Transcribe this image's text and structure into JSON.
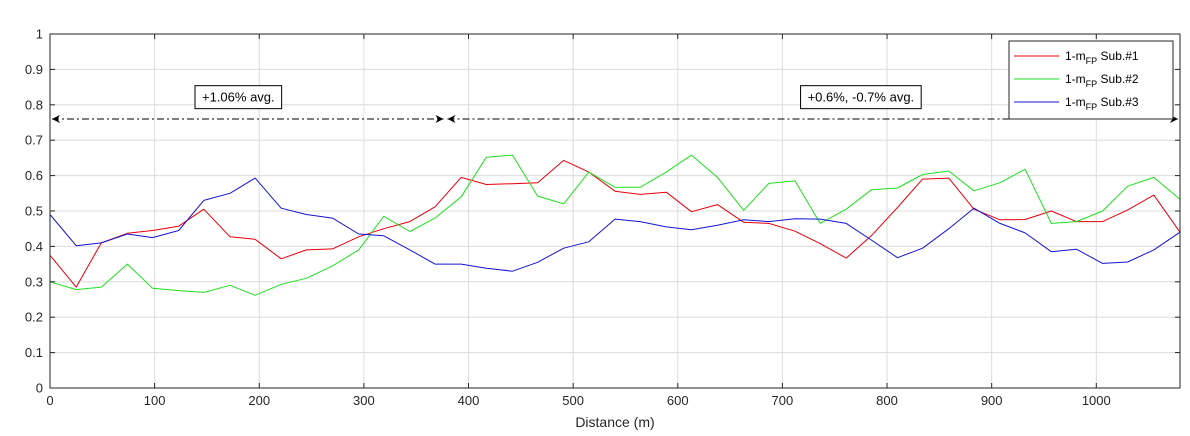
{
  "chart_data": {
    "type": "line",
    "xlabel": "Distance (m)",
    "ylabel": "",
    "xlim": [
      0,
      1080
    ],
    "ylim": [
      0,
      1
    ],
    "grid": true,
    "legend_position": "top-right",
    "xticks": [
      0,
      100,
      200,
      300,
      400,
      500,
      600,
      700,
      800,
      900,
      1000
    ],
    "yticks": [
      0,
      0.1,
      0.2,
      0.3,
      0.4,
      0.5,
      0.6,
      0.7,
      0.8,
      0.9,
      1
    ],
    "xtick_labels": [
      "0",
      "100",
      "200",
      "300",
      "400",
      "500",
      "600",
      "700",
      "800",
      "900",
      "1000"
    ],
    "ytick_labels": [
      "0",
      "0.1",
      "0.2",
      "0.3",
      "0.4",
      "0.5",
      "0.6",
      "0.7",
      "0.8",
      "0.9",
      "1"
    ],
    "x": [
      0,
      25,
      49,
      74,
      98,
      123,
      147,
      172,
      196,
      221,
      245,
      270,
      295,
      319,
      344,
      368,
      393,
      417,
      442,
      466,
      491,
      515,
      540,
      564,
      589,
      613,
      638,
      663,
      687,
      712,
      736,
      761,
      785,
      810,
      834,
      859,
      883,
      908,
      932,
      957,
      981,
      1006,
      1030,
      1055,
      1080
    ],
    "series": [
      {
        "name": "1-mFP Sub.#1",
        "legend_base": "1-m",
        "legend_sub": "FP",
        "legend_suffix": " Sub.#1",
        "color": "#e8000b",
        "values": [
          0.375,
          0.285,
          0.41,
          0.437,
          0.445,
          0.457,
          0.505,
          0.427,
          0.42,
          0.365,
          0.39,
          0.393,
          0.427,
          0.45,
          0.47,
          0.512,
          0.595,
          0.575,
          0.577,
          0.58,
          0.643,
          0.61,
          0.556,
          0.547,
          0.553,
          0.498,
          0.518,
          0.468,
          0.465,
          0.443,
          0.408,
          0.367,
          0.43,
          0.51,
          0.59,
          0.593,
          0.505,
          0.475,
          0.476,
          0.5,
          0.47,
          0.47,
          0.503,
          0.545,
          0.44
        ]
      },
      {
        "name": "1-mFP Sub.#2",
        "legend_base": "1-m",
        "legend_sub": "FP",
        "legend_suffix": " Sub.#2",
        "color": "#1fe01f",
        "values": [
          0.3,
          0.278,
          0.285,
          0.35,
          0.282,
          0.275,
          0.27,
          0.29,
          0.262,
          0.293,
          0.31,
          0.345,
          0.39,
          0.485,
          0.442,
          0.48,
          0.54,
          0.652,
          0.658,
          0.542,
          0.52,
          0.61,
          0.567,
          0.567,
          0.61,
          0.658,
          0.595,
          0.502,
          0.578,
          0.585,
          0.465,
          0.505,
          0.56,
          0.565,
          0.603,
          0.613,
          0.557,
          0.58,
          0.618,
          0.465,
          0.47,
          0.5,
          0.57,
          0.595,
          0.533
        ]
      },
      {
        "name": "1-mFP Sub.#3",
        "legend_base": "1-m",
        "legend_sub": "FP",
        "legend_suffix": " Sub.#3",
        "color": "#1414d2",
        "values": [
          0.49,
          0.402,
          0.41,
          0.435,
          0.425,
          0.445,
          0.53,
          0.55,
          0.593,
          0.508,
          0.49,
          0.48,
          0.435,
          0.43,
          0.39,
          0.35,
          0.35,
          0.338,
          0.33,
          0.355,
          0.395,
          0.413,
          0.477,
          0.47,
          0.455,
          0.447,
          0.46,
          0.475,
          0.47,
          0.478,
          0.477,
          0.465,
          0.418,
          0.368,
          0.395,
          0.45,
          0.508,
          0.465,
          0.438,
          0.385,
          0.392,
          0.352,
          0.356,
          0.39,
          0.44
        ]
      }
    ],
    "annotations": [
      {
        "text": "+1.06% avg.",
        "x_from": 0,
        "x_to": 378,
        "y": 0.76,
        "label_x": 180,
        "label_y": 0.823
      },
      {
        "text": "+0.6%, -0.7% avg.",
        "x_from": 378,
        "x_to": 1080,
        "y": 0.76,
        "label_x": 775,
        "label_y": 0.823
      }
    ]
  }
}
